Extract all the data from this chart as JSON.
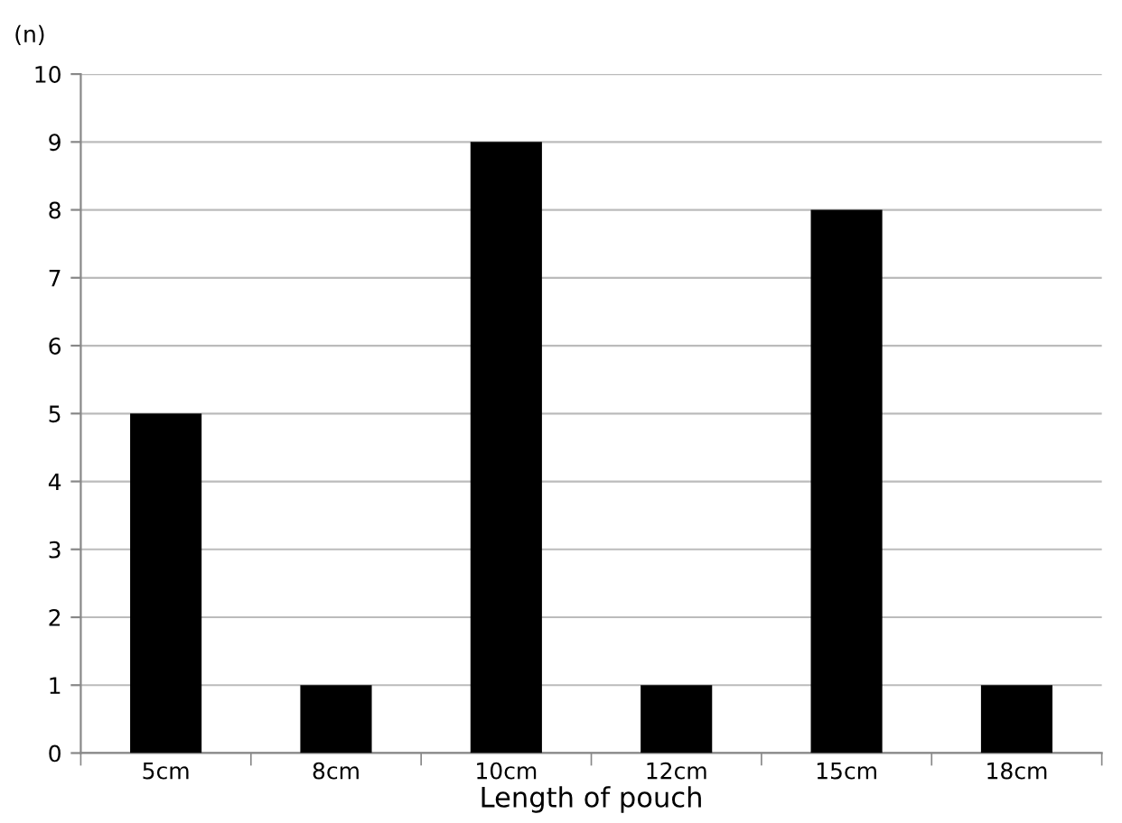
{
  "chart_data": {
    "type": "bar",
    "xlabel": "Length of pouch",
    "ylabel": "(n)",
    "categories": [
      "5cm",
      "8cm",
      "10cm",
      "12cm",
      "15cm",
      "18cm"
    ],
    "values": [
      5,
      1,
      9,
      1,
      8,
      1
    ],
    "color": "#000000",
    "ylim": [
      0,
      10
    ],
    "yticks": [
      0,
      1,
      2,
      3,
      4,
      5,
      6,
      7,
      8,
      9,
      10
    ],
    "grid": "y"
  }
}
